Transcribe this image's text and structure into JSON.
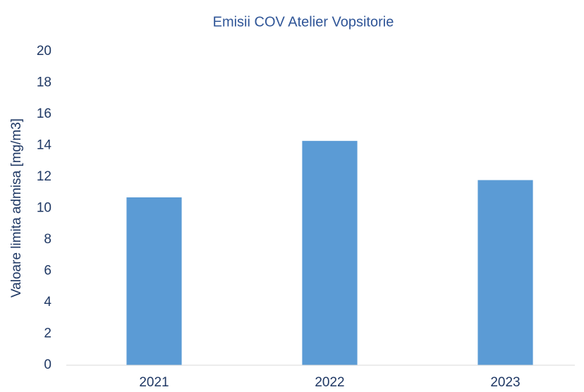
{
  "chart_data": {
    "type": "bar",
    "title": "Emisii COV Atelier Vopsitorie",
    "y_label": "Valoare limita admisa [mg/m3]",
    "categories": [
      "2021",
      "2022",
      "2023"
    ],
    "values": [
      10.7,
      14.3,
      11.8
    ],
    "color": "#5b9bd5",
    "ylim": [
      0,
      20
    ],
    "yticks": [
      0,
      2,
      4,
      6,
      8,
      10,
      12,
      14,
      16,
      18,
      20
    ],
    "grid": false
  }
}
